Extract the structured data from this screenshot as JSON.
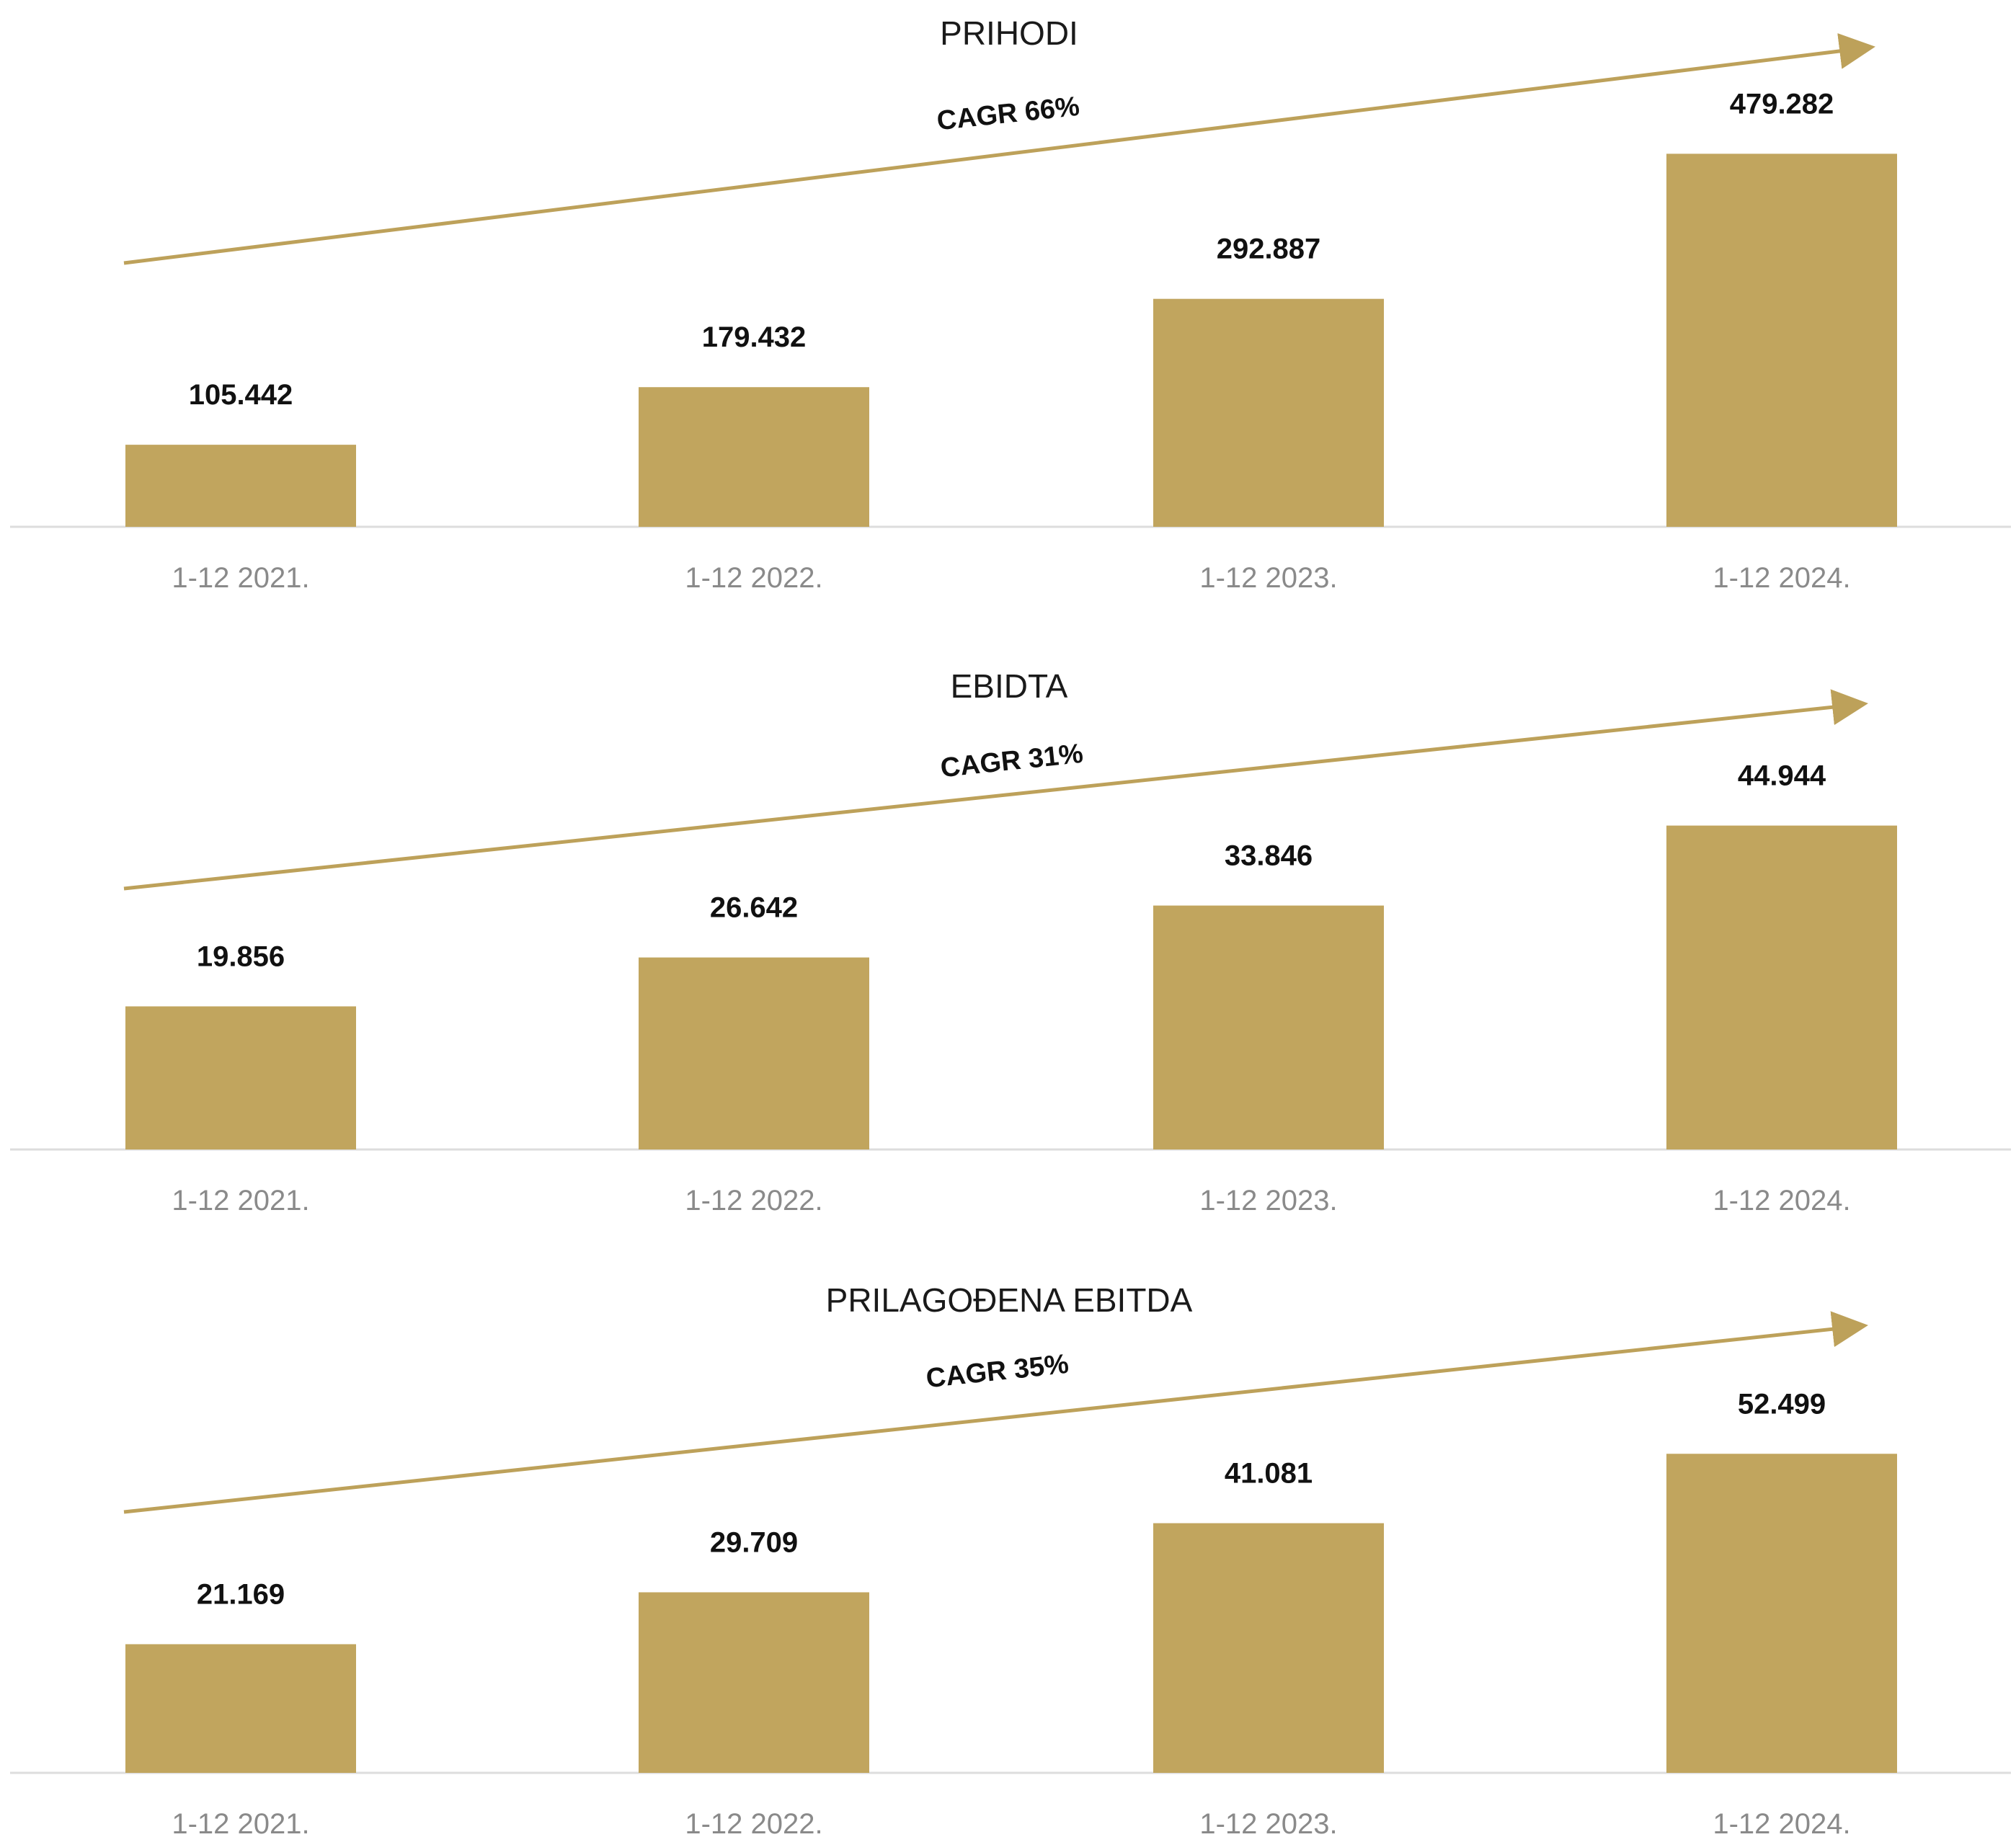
{
  "colors": {
    "bar": "#c1a55e",
    "arrow": "#bda15a",
    "baseline": "#dddddd"
  },
  "chart_data": [
    {
      "type": "bar",
      "title": "PRIHODI",
      "categories": [
        "1-12 2021.",
        "1-12 2022.",
        "1-12 2023.",
        "1-12 2024."
      ],
      "values": [
        105442,
        179432,
        292887,
        479282
      ],
      "value_labels": [
        "105.442",
        "179.432",
        "292.887",
        "479.282"
      ],
      "annotation": "CAGR 66%",
      "ylim": [
        0,
        500000
      ],
      "grid": false
    },
    {
      "type": "bar",
      "title": "EBIDTA",
      "categories": [
        "1-12 2021.",
        "1-12 2022.",
        "1-12 2023.",
        "1-12 2024."
      ],
      "values": [
        19856,
        26642,
        33846,
        44944
      ],
      "value_labels": [
        "19.856",
        "26.642",
        "33.846",
        "44.944"
      ],
      "annotation": "CAGR 31%",
      "ylim": [
        0,
        50000
      ],
      "grid": false
    },
    {
      "type": "bar",
      "title": "PRILAGOĐENA EBITDA",
      "categories": [
        "1-12 2021.",
        "1-12 2022.",
        "1-12 2023.",
        "1-12 2024."
      ],
      "values": [
        21169,
        29709,
        41081,
        52499
      ],
      "value_labels": [
        "21.169",
        "29.709",
        "41.081",
        "52.499"
      ],
      "annotation": "CAGR 35%",
      "ylim": [
        0,
        60000
      ],
      "grid": false
    }
  ]
}
